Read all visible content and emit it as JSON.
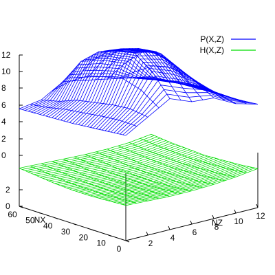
{
  "chart_data": {
    "type": "surface",
    "title": "",
    "axes": {
      "x": {
        "label": "NX",
        "range": [
          0,
          60
        ],
        "ticks": [
          "60",
          "50",
          "40",
          "30",
          "20",
          "10",
          "0"
        ]
      },
      "y": {
        "label": "NZ",
        "range": [
          0,
          12
        ],
        "ticks": [
          "2",
          "4",
          "6",
          "8",
          "10",
          "12"
        ]
      },
      "z": {
        "range": [
          0,
          12
        ],
        "ticks": [
          "0",
          "2",
          "4",
          "6",
          "8",
          "10",
          "12"
        ]
      }
    },
    "legend_position": "top-right",
    "grid": false,
    "series": [
      {
        "name": "P(X,Z)",
        "color": "#0000ff",
        "style": "wireframe",
        "x": [
          0,
          10,
          20,
          30,
          40,
          50,
          60
        ],
        "y": [
          0,
          2,
          4,
          6,
          8,
          10,
          12
        ],
        "z": [
          [
            2.0,
            1.8,
            1.6,
            1.4,
            1.3,
            1.2,
            1.1
          ],
          [
            3.5,
            3.8,
            3.6,
            3.2,
            2.8,
            2.0,
            1.5
          ],
          [
            5.0,
            7.5,
            9.0,
            8.5,
            7.8,
            6.0,
            3.0
          ],
          [
            4.0,
            6.5,
            8.5,
            8.2,
            7.5,
            5.5,
            2.5
          ],
          [
            3.8,
            5.0,
            6.0,
            7.0,
            6.5,
            4.5,
            2.0
          ],
          [
            2.5,
            3.0,
            3.2,
            3.0,
            2.6,
            2.0,
            1.5
          ],
          [
            1.8,
            1.6,
            1.5,
            1.4,
            1.3,
            1.2,
            1.0
          ]
        ]
      },
      {
        "name": "H(X,Z)",
        "color": "#00dd00",
        "style": "wireframe",
        "x": [
          0,
          10,
          20,
          30,
          40,
          50,
          60
        ],
        "y": [
          0,
          2,
          4,
          6,
          8,
          10,
          12
        ],
        "z": [
          [
            0.8,
            0.7,
            0.6,
            0.6,
            0.7,
            0.9,
            1.1
          ],
          [
            0.7,
            0.6,
            0.5,
            0.5,
            0.6,
            0.8,
            1.0
          ],
          [
            0.6,
            0.5,
            0.4,
            0.4,
            0.5,
            0.7,
            0.9
          ],
          [
            0.6,
            0.4,
            0.3,
            0.3,
            0.4,
            0.6,
            0.8
          ],
          [
            0.7,
            0.5,
            0.4,
            0.3,
            0.4,
            0.6,
            0.8
          ],
          [
            0.9,
            0.7,
            0.6,
            0.5,
            0.6,
            0.7,
            0.9
          ],
          [
            1.2,
            1.0,
            0.9,
            0.8,
            0.9,
            1.0,
            1.2
          ]
        ]
      }
    ]
  }
}
